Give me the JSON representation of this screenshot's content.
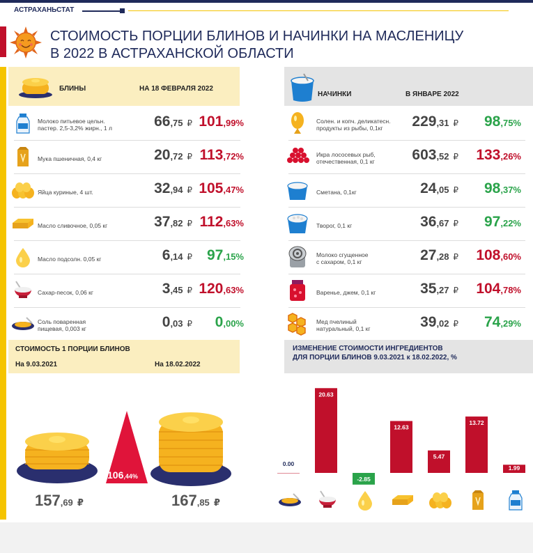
{
  "header": {
    "agency": "АСТРАХАНЬСТАТ",
    "title_line1": "СТОИМОСТЬ ПОРЦИИ БЛИНОВ И НАЧИНКИ НА МАСЛЕНИЦУ",
    "title_line2": "В 2022 В АСТРАХАНСКОЙ ОБЛАСТИ"
  },
  "colors": {
    "navy": "#1f2a5a",
    "red": "#c0102b",
    "green": "#2aa34a",
    "yellow": "#f5c400"
  },
  "bliny": {
    "title": "БЛИНЫ",
    "date": "НА 18 ФЕВРАЛЯ 2022",
    "items": [
      {
        "icon": "milk-bottle-icon",
        "label1": "Молоко питьевое цельн.",
        "label2": "пастер. 2,5-3,2% жирн., 1 л",
        "price_int": "66",
        "price_dec": ",75",
        "cur": "₽",
        "pct_int": "101",
        "pct_dec": ",99%",
        "trend": "red"
      },
      {
        "icon": "flour-bag-icon",
        "label1": "Мука пшеничная, 0,4 кг",
        "label2": "",
        "price_int": "20",
        "price_dec": ",72",
        "cur": "₽",
        "pct_int": "113",
        "pct_dec": ",72%",
        "trend": "red"
      },
      {
        "icon": "eggs-icon",
        "label1": "Яйца куриные, 4 шт.",
        "label2": "",
        "price_int": "32",
        "price_dec": ",94",
        "cur": "₽",
        "pct_int": "105",
        "pct_dec": ",47%",
        "trend": "red"
      },
      {
        "icon": "butter-icon",
        "label1": "Масло сливочное, 0,05 кг",
        "label2": "",
        "price_int": "37",
        "price_dec": ",82",
        "cur": "₽",
        "pct_int": "112",
        "pct_dec": ",63%",
        "trend": "red"
      },
      {
        "icon": "oil-drop-icon",
        "label1": "Масло подсолн. 0,05 кг",
        "label2": "",
        "price_int": "6",
        "price_dec": ",14",
        "cur": "₽",
        "pct_int": "97",
        "pct_dec": ",15%",
        "trend": "green"
      },
      {
        "icon": "sugar-bowl-icon",
        "label1": "Сахар-песок, 0,06 кг",
        "label2": "",
        "price_int": "3",
        "price_dec": ",45",
        "cur": "₽",
        "pct_int": "120",
        "pct_dec": ",63%",
        "trend": "red"
      },
      {
        "icon": "salt-plate-icon",
        "label1": "Соль поваренная",
        "label2": "пищевая, 0,003 кг",
        "price_int": "0",
        "price_dec": ",03",
        "cur": "₽",
        "pct_int": "0",
        "pct_dec": ",00%",
        "trend": "green"
      }
    ]
  },
  "fillings": {
    "title": "НАЧИНКИ",
    "date": "В ЯНВАРЕ 2022",
    "items": [
      {
        "icon": "fish-icon",
        "label1": "Солен. и копч. деликатесн.",
        "label2": "продукты из рыбы, 0,1кг",
        "price_int": "229",
        "price_dec": ",31",
        "cur": "₽",
        "pct_int": "98",
        "pct_dec": ",75%",
        "trend": "green"
      },
      {
        "icon": "caviar-icon",
        "label1": "Икра лососевых рыб,",
        "label2": "отечественная, 0,1 кг",
        "price_int": "603",
        "price_dec": ",52",
        "cur": "₽",
        "pct_int": "133",
        "pct_dec": ",26%",
        "trend": "red"
      },
      {
        "icon": "sour-cream-icon",
        "label1": "Сметана, 0,1кг",
        "label2": "",
        "price_int": "24",
        "price_dec": ",05",
        "cur": "₽",
        "pct_int": "98",
        "pct_dec": ",37%",
        "trend": "green"
      },
      {
        "icon": "cottage-cheese-icon",
        "label1": "Творог, 0,1 кг",
        "label2": "",
        "price_int": "36",
        "price_dec": ",67",
        "cur": "₽",
        "pct_int": "97",
        "pct_dec": ",22%",
        "trend": "green"
      },
      {
        "icon": "condensed-milk-icon",
        "label1": "Молоко сгущенное",
        "label2": "с сахаром, 0,1 кг",
        "price_int": "27",
        "price_dec": ",28",
        "cur": "₽",
        "pct_int": "108",
        "pct_dec": ",60%",
        "trend": "red"
      },
      {
        "icon": "jam-jar-icon",
        "label1": "Варенье, джем, 0,1 кг",
        "label2": "",
        "price_int": "35",
        "price_dec": ",27",
        "cur": "₽",
        "pct_int": "104",
        "pct_dec": ",78%",
        "trend": "red"
      },
      {
        "icon": "honeycomb-icon",
        "label1": "Мед пчелиный",
        "label2": "натуральный, 0,1 кг",
        "price_int": "39",
        "price_dec": ",02",
        "cur": "₽",
        "pct_int": "74",
        "pct_dec": ",29%",
        "trend": "green"
      }
    ]
  },
  "portion": {
    "title": "СТОИМОСТЬ 1 ПОРЦИИ БЛИНОВ",
    "date1": "На 9.03.2021",
    "date2": "На 18.02.2022",
    "price1_int": "157",
    "price1_dec": ",69",
    "price2_int": "167",
    "price2_dec": ",85",
    "cur": "₽",
    "growth_int": "106",
    "growth_dec": ",44%"
  },
  "change_chart": {
    "title_line1": "ИЗМЕНЕНИЕ СТОИМОСТИ ИНГРЕДИЕНТОВ",
    "title_line2": "ДЛЯ ПОРЦИИ БЛИНОВ 9.03.2021 к 18.02.2022, %"
  },
  "chart_data": {
    "type": "bar",
    "categories": [
      "salt",
      "sugar",
      "sunflower-oil",
      "butter",
      "eggs",
      "flour",
      "milk"
    ],
    "category_icons": [
      "salt-plate-icon",
      "sugar-bowl-icon",
      "oil-drop-icon",
      "butter-icon",
      "eggs-icon",
      "flour-bag-icon",
      "milk-bottle-icon"
    ],
    "values": [
      0.0,
      20.63,
      -2.85,
      12.63,
      5.47,
      13.72,
      1.99
    ],
    "labels": [
      "0.00",
      "20.63",
      "-2.85",
      "12.63",
      "5.47",
      "13.72",
      "1.99"
    ],
    "bar_colors": [
      "#c0102b",
      "#c0102b",
      "#2aa34a",
      "#c0102b",
      "#c0102b",
      "#c0102b",
      "#c0102b"
    ],
    "grid": false
  }
}
